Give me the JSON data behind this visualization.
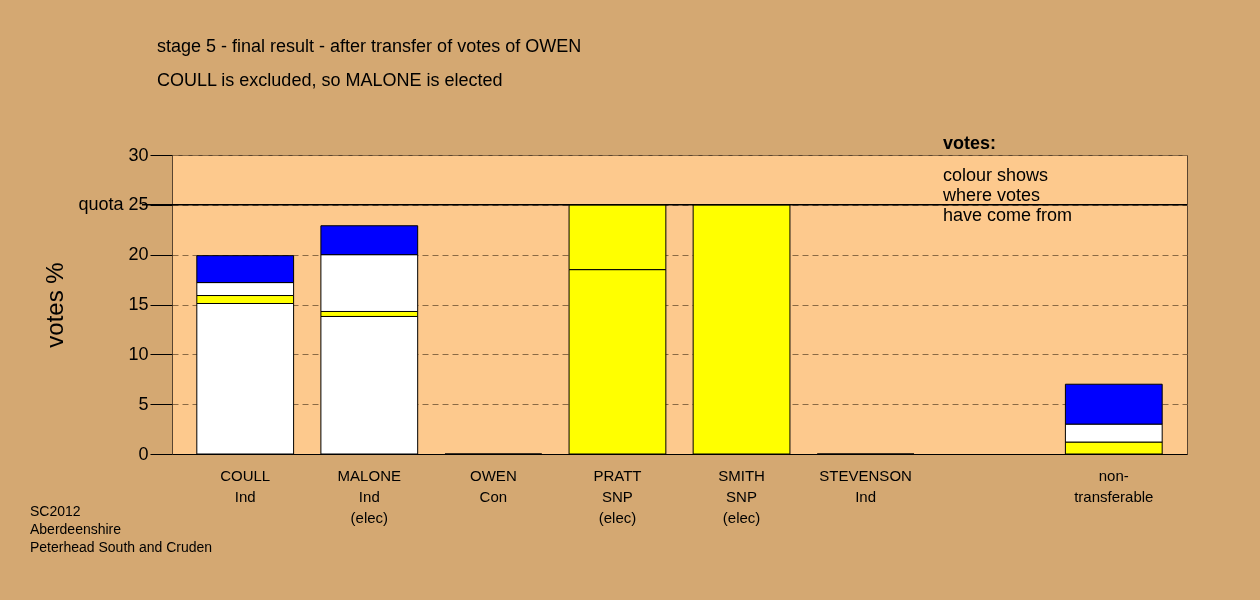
{
  "chart_data": {
    "type": "bar",
    "title": "stage 5 - final result - after transfer of votes of OWEN",
    "subtitle": "COULL is excluded, so MALONE is elected",
    "ylabel": "votes %",
    "categories": [
      "COULL\nInd",
      "MALONE\nInd\n(elec)",
      "OWEN\nCon",
      "PRATT\nSNP\n(elec)",
      "SMITH\nSNP\n(elec)",
      "STEVENSON\nInd",
      null,
      "non-\ntransferable"
    ],
    "stacked": true,
    "series": [
      {
        "colors": [
          "#ffffff",
          "#ffffff",
          "#ffffff",
          "#ffff00",
          "#ffff00",
          "#ffffff",
          "#ffffff",
          "#ffff00"
        ],
        "values": [
          15.1,
          13.8,
          0,
          18.5,
          25.0,
          0,
          null,
          1.2
        ]
      },
      {
        "colors": [
          "#ffff00",
          "#ffff00",
          "#ffff00",
          "#ffff00",
          "#ffff00",
          "#ffff00",
          "#ffff00",
          "#ffffff"
        ],
        "values": [
          0.8,
          0.5,
          null,
          6.5,
          null,
          null,
          null,
          1.8
        ]
      },
      {
        "colors": [
          "#ffffff",
          "#ffffff",
          "#ffffff",
          "#ffffff",
          "#ffffff",
          "#ffffff",
          "#ffffff",
          "#0000ff"
        ],
        "values": [
          1.3,
          5.7,
          null,
          null,
          null,
          null,
          null,
          4.0
        ]
      },
      {
        "colors": [
          "#0000ff",
          "#0000ff",
          "#0000ff",
          "#0000ff",
          "#0000ff",
          "#0000ff",
          "#0000ff",
          "#0000ff"
        ],
        "values": [
          2.7,
          2.9,
          null,
          null,
          null,
          null,
          null,
          null
        ]
      }
    ],
    "ylim": [
      0,
      30
    ],
    "yticks": [
      0,
      5,
      10,
      15,
      20,
      {
        "value": 25,
        "label": "quota 25"
      },
      30
    ],
    "grid": "y",
    "ref_lines": [
      {
        "axis": "y",
        "value": 25,
        "color": "#000000"
      }
    ],
    "annotations": [
      "SC2012\nAberdeenshire\nPeterhead South and Cruden",
      "votes:",
      "colour shows\nwhere votes\nhave come from"
    ]
  }
}
